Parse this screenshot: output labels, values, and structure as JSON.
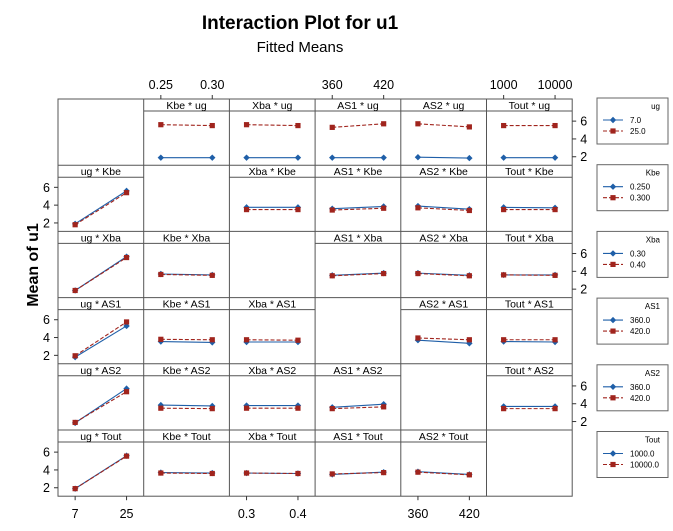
{
  "chart_data": {
    "type": "line",
    "title": "Interaction Plot for u1",
    "subtitle": "Fitted Means",
    "ylabel": "Mean of u1",
    "ylim": [
      1.5,
      6.8
    ],
    "y_ticks": [
      "2",
      "4",
      "6"
    ],
    "factors": [
      {
        "name": "ug",
        "levels": [
          "7",
          "25"
        ],
        "ticks": [
          "7",
          "25"
        ]
      },
      {
        "name": "Kbe",
        "levels": [
          "0.25",
          "0.30"
        ],
        "ticks": [
          "0.25",
          "0.30"
        ]
      },
      {
        "name": "Xba",
        "levels": [
          "0.3",
          "0.4"
        ],
        "ticks": [
          "0.3",
          "0.4"
        ]
      },
      {
        "name": "AS1",
        "levels": [
          "360",
          "420"
        ],
        "ticks": [
          "360",
          "420"
        ]
      },
      {
        "name": "AS2",
        "levels": [
          "360",
          "420"
        ],
        "ticks": [
          "360",
          "420"
        ]
      },
      {
        "name": "Tout",
        "levels": [
          "1000",
          "10000"
        ],
        "ticks": [
          "1000",
          "10000"
        ]
      }
    ],
    "legends": [
      {
        "title": "ug",
        "entries": [
          "7.0",
          "25.0"
        ]
      },
      {
        "title": "Kbe",
        "entries": [
          "0.250",
          "0.300"
        ]
      },
      {
        "title": "Xba",
        "entries": [
          "0.30",
          "0.40"
        ]
      },
      {
        "title": "AS1",
        "entries": [
          "360.0",
          "420.0"
        ]
      },
      {
        "title": "AS2",
        "entries": [
          "360.0",
          "420.0"
        ]
      },
      {
        "title": "Tout",
        "entries": [
          "1000.0",
          "10000.0"
        ]
      }
    ],
    "series_colors": [
      "#1f5fa8",
      "#a0241d"
    ],
    "grid": false,
    "panels": [
      {
        "label": "Kbe * ug",
        "row": 0,
        "col": 1,
        "series": [
          [
            1.9,
            1.9
          ],
          [
            5.6,
            5.5
          ]
        ]
      },
      {
        "label": "Xba * ug",
        "row": 0,
        "col": 2,
        "series": [
          [
            1.9,
            1.9
          ],
          [
            5.6,
            5.5
          ]
        ]
      },
      {
        "label": "AS1 * ug",
        "row": 0,
        "col": 3,
        "series": [
          [
            1.9,
            1.9
          ],
          [
            5.3,
            5.7
          ]
        ]
      },
      {
        "label": "AS2 * ug",
        "row": 0,
        "col": 4,
        "series": [
          [
            1.95,
            1.85
          ],
          [
            5.7,
            5.35
          ]
        ]
      },
      {
        "label": "Tout * ug",
        "row": 0,
        "col": 5,
        "series": [
          [
            1.9,
            1.9
          ],
          [
            5.5,
            5.5
          ]
        ]
      },
      {
        "label": "ug * Kbe",
        "row": 1,
        "col": 0,
        "series": [
          [
            1.9,
            5.6
          ],
          [
            1.8,
            5.4
          ]
        ]
      },
      {
        "label": "Xba * Kbe",
        "row": 1,
        "col": 2,
        "series": [
          [
            3.75,
            3.75
          ],
          [
            3.5,
            3.5
          ]
        ]
      },
      {
        "label": "AS1 * Kbe",
        "row": 1,
        "col": 3,
        "series": [
          [
            3.6,
            3.85
          ],
          [
            3.45,
            3.65
          ]
        ]
      },
      {
        "label": "AS2 * Kbe",
        "row": 1,
        "col": 4,
        "series": [
          [
            3.9,
            3.55
          ],
          [
            3.7,
            3.4
          ]
        ]
      },
      {
        "label": "Tout * Kbe",
        "row": 1,
        "col": 5,
        "series": [
          [
            3.75,
            3.7
          ],
          [
            3.5,
            3.5
          ]
        ]
      },
      {
        "label": "ug * Xba",
        "row": 2,
        "col": 0,
        "series": [
          [
            1.85,
            5.65
          ],
          [
            1.85,
            5.55
          ]
        ]
      },
      {
        "label": "Kbe * Xba",
        "row": 2,
        "col": 1,
        "series": [
          [
            3.7,
            3.6
          ],
          [
            3.65,
            3.55
          ]
        ]
      },
      {
        "label": "AS1 * Xba",
        "row": 2,
        "col": 3,
        "series": [
          [
            3.55,
            3.8
          ],
          [
            3.5,
            3.75
          ]
        ]
      },
      {
        "label": "AS2 * Xba",
        "row": 2,
        "col": 4,
        "series": [
          [
            3.8,
            3.55
          ],
          [
            3.75,
            3.5
          ]
        ]
      },
      {
        "label": "Tout * Xba",
        "row": 2,
        "col": 5,
        "series": [
          [
            3.6,
            3.6
          ],
          [
            3.6,
            3.55
          ]
        ]
      },
      {
        "label": "ug * AS1",
        "row": 3,
        "col": 0,
        "series": [
          [
            1.8,
            5.3
          ],
          [
            1.95,
            5.75
          ]
        ]
      },
      {
        "label": "Kbe * AS1",
        "row": 3,
        "col": 1,
        "series": [
          [
            3.55,
            3.45
          ],
          [
            3.8,
            3.75
          ]
        ]
      },
      {
        "label": "Xba * AS1",
        "row": 3,
        "col": 2,
        "series": [
          [
            3.5,
            3.5
          ],
          [
            3.75,
            3.7
          ]
        ]
      },
      {
        "label": "AS2 * AS1",
        "row": 3,
        "col": 4,
        "series": [
          [
            3.7,
            3.35
          ],
          [
            3.95,
            3.75
          ]
        ]
      },
      {
        "label": "Tout * AS1",
        "row": 3,
        "col": 5,
        "series": [
          [
            3.55,
            3.5
          ],
          [
            3.75,
            3.75
          ]
        ]
      },
      {
        "label": "ug * AS2",
        "row": 4,
        "col": 0,
        "series": [
          [
            1.85,
            5.7
          ],
          [
            1.9,
            5.35
          ]
        ]
      },
      {
        "label": "Kbe * AS2",
        "row": 4,
        "col": 1,
        "series": [
          [
            3.85,
            3.75
          ],
          [
            3.5,
            3.45
          ]
        ]
      },
      {
        "label": "Xba * AS2",
        "row": 4,
        "col": 2,
        "series": [
          [
            3.8,
            3.8
          ],
          [
            3.5,
            3.5
          ]
        ]
      },
      {
        "label": "AS1 * AS2",
        "row": 4,
        "col": 3,
        "series": [
          [
            3.6,
            3.95
          ],
          [
            3.45,
            3.65
          ]
        ]
      },
      {
        "label": "Tout * AS2",
        "row": 4,
        "col": 5,
        "series": [
          [
            3.7,
            3.7
          ],
          [
            3.45,
            3.45
          ]
        ]
      },
      {
        "label": "ug * Tout",
        "row": 5,
        "col": 0,
        "series": [
          [
            1.9,
            5.6
          ],
          [
            1.9,
            5.55
          ]
        ]
      },
      {
        "label": "Kbe * Tout",
        "row": 5,
        "col": 1,
        "series": [
          [
            3.7,
            3.65
          ],
          [
            3.65,
            3.6
          ]
        ]
      },
      {
        "label": "Xba * Tout",
        "row": 5,
        "col": 2,
        "series": [
          [
            3.65,
            3.6
          ],
          [
            3.65,
            3.6
          ]
        ]
      },
      {
        "label": "AS1 * Tout",
        "row": 5,
        "col": 3,
        "series": [
          [
            3.5,
            3.75
          ],
          [
            3.55,
            3.7
          ]
        ]
      },
      {
        "label": "AS2 * Tout",
        "row": 5,
        "col": 4,
        "series": [
          [
            3.8,
            3.5
          ],
          [
            3.75,
            3.45
          ]
        ]
      }
    ]
  }
}
